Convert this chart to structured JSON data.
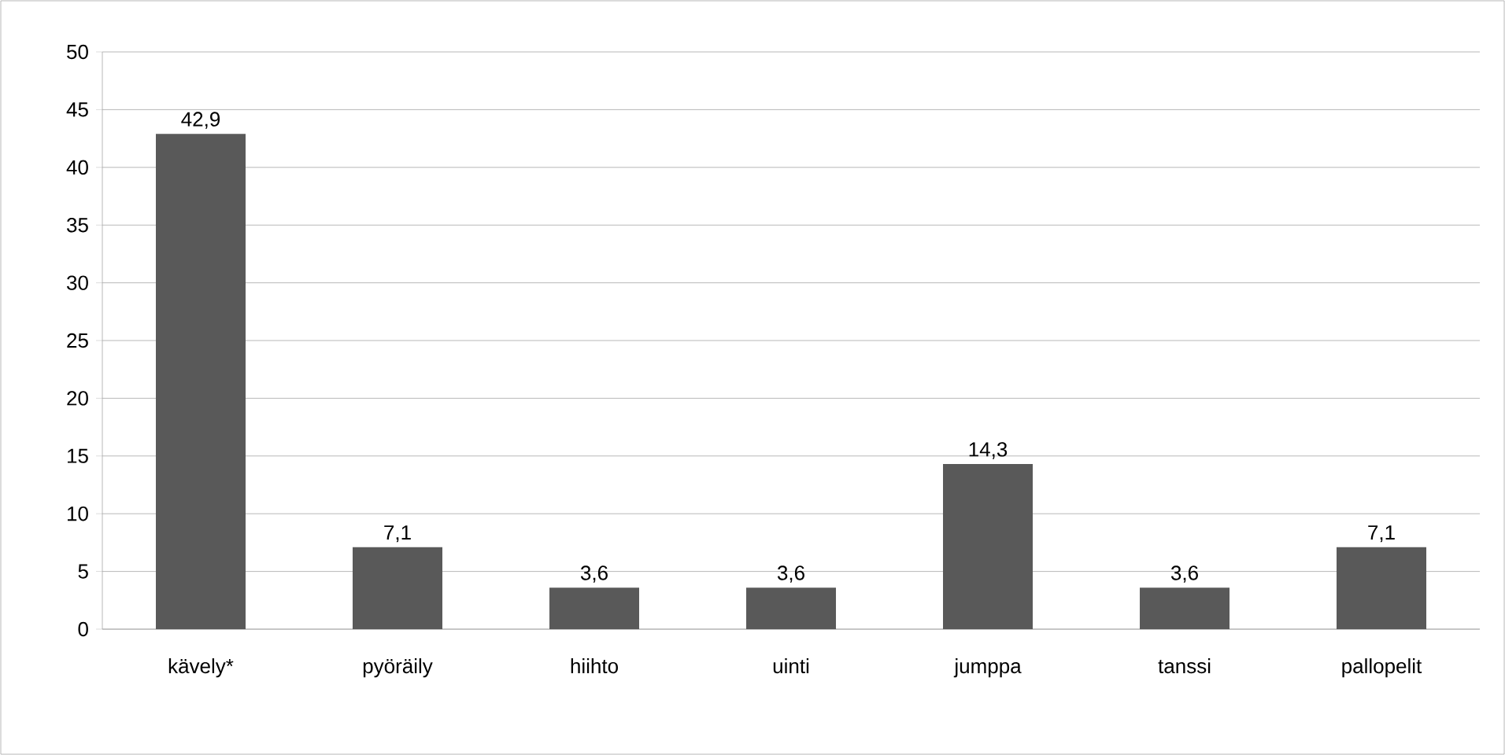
{
  "chart_data": {
    "type": "bar",
    "categories": [
      "kävely*",
      "pyöräily",
      "hiihto",
      "uinti",
      "jumppa",
      "tanssi",
      "pallopelit"
    ],
    "values": [
      42.9,
      7.1,
      3.6,
      3.6,
      14.3,
      3.6,
      7.1
    ],
    "value_labels": [
      "42,9",
      "7,1",
      "3,6",
      "3,6",
      "14,3",
      "3,6",
      "7,1"
    ],
    "color": "#595959",
    "ylim": [
      0,
      50
    ],
    "yticks": [
      0,
      5,
      10,
      15,
      20,
      25,
      30,
      35,
      40,
      45,
      50
    ],
    "grid": "y"
  }
}
